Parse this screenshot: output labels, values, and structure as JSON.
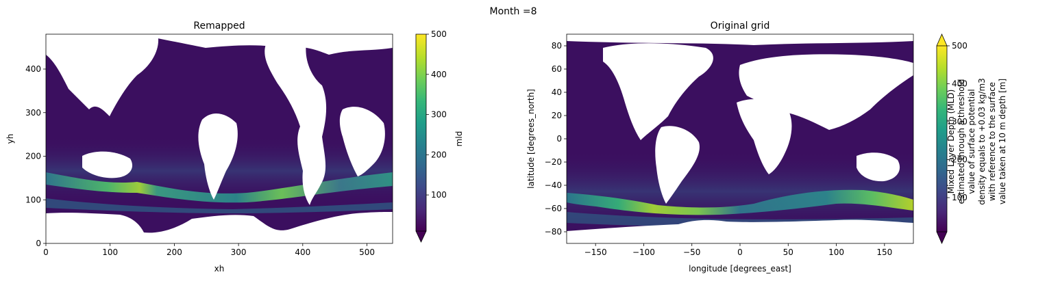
{
  "figure": {
    "suptitle": "Month =8"
  },
  "colors": {
    "viridis": [
      "#440154",
      "#482878",
      "#3e4989",
      "#31688e",
      "#26828e",
      "#1f9e89",
      "#35b779",
      "#6ece58",
      "#b5de2b",
      "#fde725"
    ],
    "ocean_base": "#3b0f5f",
    "land": "#ffffff"
  },
  "chart_data": [
    {
      "type": "heatmap",
      "title": "Remapped",
      "xlabel": "xh",
      "ylabel": "yh",
      "xlim": [
        0,
        540
      ],
      "ylim": [
        0,
        480
      ],
      "x_ticks": [
        0,
        100,
        200,
        300,
        400,
        500
      ],
      "y_ticks": [
        0,
        100,
        200,
        300,
        400
      ],
      "grid": false,
      "colorbar": {
        "label": "mld",
        "ticks": [
          100,
          200,
          300,
          400,
          500
        ],
        "range": [
          10,
          500
        ],
        "colormap": "viridis",
        "extend_max": false,
        "extend_min": true
      },
      "features": {
        "high_band_y": [
          130,
          160
        ],
        "peak_x": [
          140,
          155
        ],
        "typical_mld_open_ocean": 40,
        "max_mld": 500
      }
    },
    {
      "type": "heatmap",
      "title": "Original grid",
      "xlabel": "longitude [degrees_east]",
      "ylabel": "latitude [degrees_north]",
      "xlim": [
        -180,
        180
      ],
      "ylim": [
        -90,
        90
      ],
      "x_ticks": [
        -150,
        -100,
        -50,
        0,
        50,
        100,
        150
      ],
      "y_ticks": [
        -80,
        -60,
        -40,
        -20,
        0,
        20,
        40,
        60,
        80
      ],
      "grid": false,
      "colorbar": {
        "label_lines": [
          "Mixed Layer Depth (MLD)",
          "estimated through a threshold",
          "value of surface potential",
          "density equals to +0.03 kg/m3",
          "with reference to the surface",
          "value taken at 10 m depth [m]"
        ],
        "ticks": [
          100,
          200,
          300,
          400,
          500
        ],
        "range": [
          10,
          500
        ],
        "colormap": "viridis",
        "extend_max": true,
        "extend_min": true
      },
      "features": {
        "high_band_lat": [
          -60,
          -45
        ],
        "peak_lon": [
          -110,
          -80
        ],
        "typical_mld_open_ocean": 40,
        "max_mld": 500
      }
    }
  ]
}
